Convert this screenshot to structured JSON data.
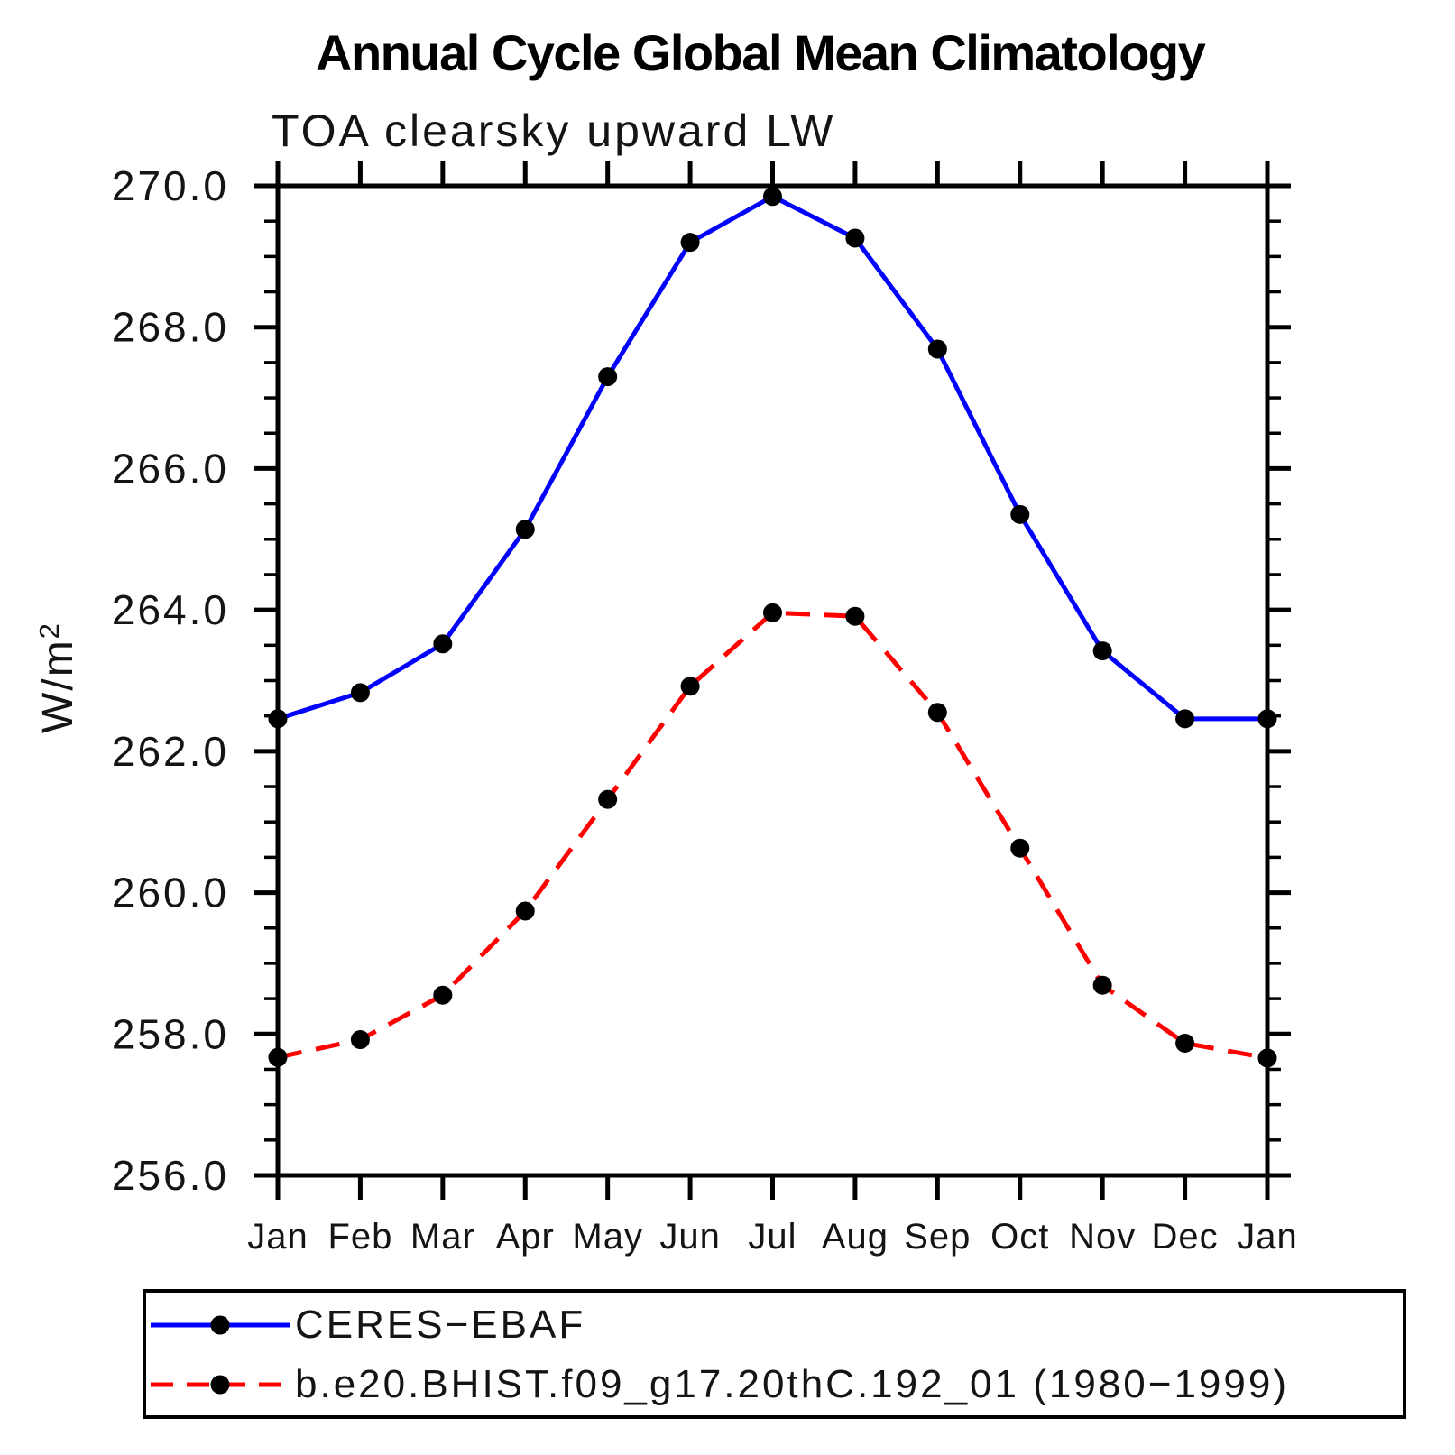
{
  "page": {
    "background": "#ffffff"
  },
  "chart_data": {
    "type": "line",
    "title": "Annual Cycle Global Mean Climatology",
    "subtitle": "TOA clearsky upward LW",
    "ylabel": "W/m²",
    "xlabel": "",
    "ylim": [
      256.0,
      270.0
    ],
    "ytick_step": 2.0,
    "ytick_minor_step": 0.5,
    "ytick_labels": [
      "270.0",
      "268.0",
      "266.0",
      "264.0",
      "262.0",
      "260.0",
      "258.0",
      "256.0"
    ],
    "categories": [
      "Jan",
      "Feb",
      "Mar",
      "Apr",
      "May",
      "Jun",
      "Jul",
      "Aug",
      "Sep",
      "Oct",
      "Nov",
      "Dec",
      "Jan"
    ],
    "series": [
      {
        "name": "CERES−EBAF",
        "color": "#0000ff",
        "line_style": "solid",
        "marker": "filled-circle",
        "marker_color": "#000000",
        "values": [
          262.46,
          262.83,
          263.52,
          265.14,
          267.3,
          269.2,
          269.85,
          269.26,
          267.69,
          265.35,
          263.42,
          262.46,
          262.46
        ]
      },
      {
        "name": "b.e20.BHIST.f09_g17.20thC.192_01 (1980−1999)",
        "color": "#ff0000",
        "line_style": "dashed",
        "marker": "filled-circle",
        "marker_color": "#000000",
        "values": [
          257.67,
          257.92,
          258.55,
          259.74,
          261.32,
          262.92,
          263.96,
          263.91,
          262.55,
          260.63,
          258.69,
          257.87,
          257.66
        ]
      }
    ],
    "grid": false,
    "legend_position": "bottom-left",
    "axis_color": "#000000"
  }
}
